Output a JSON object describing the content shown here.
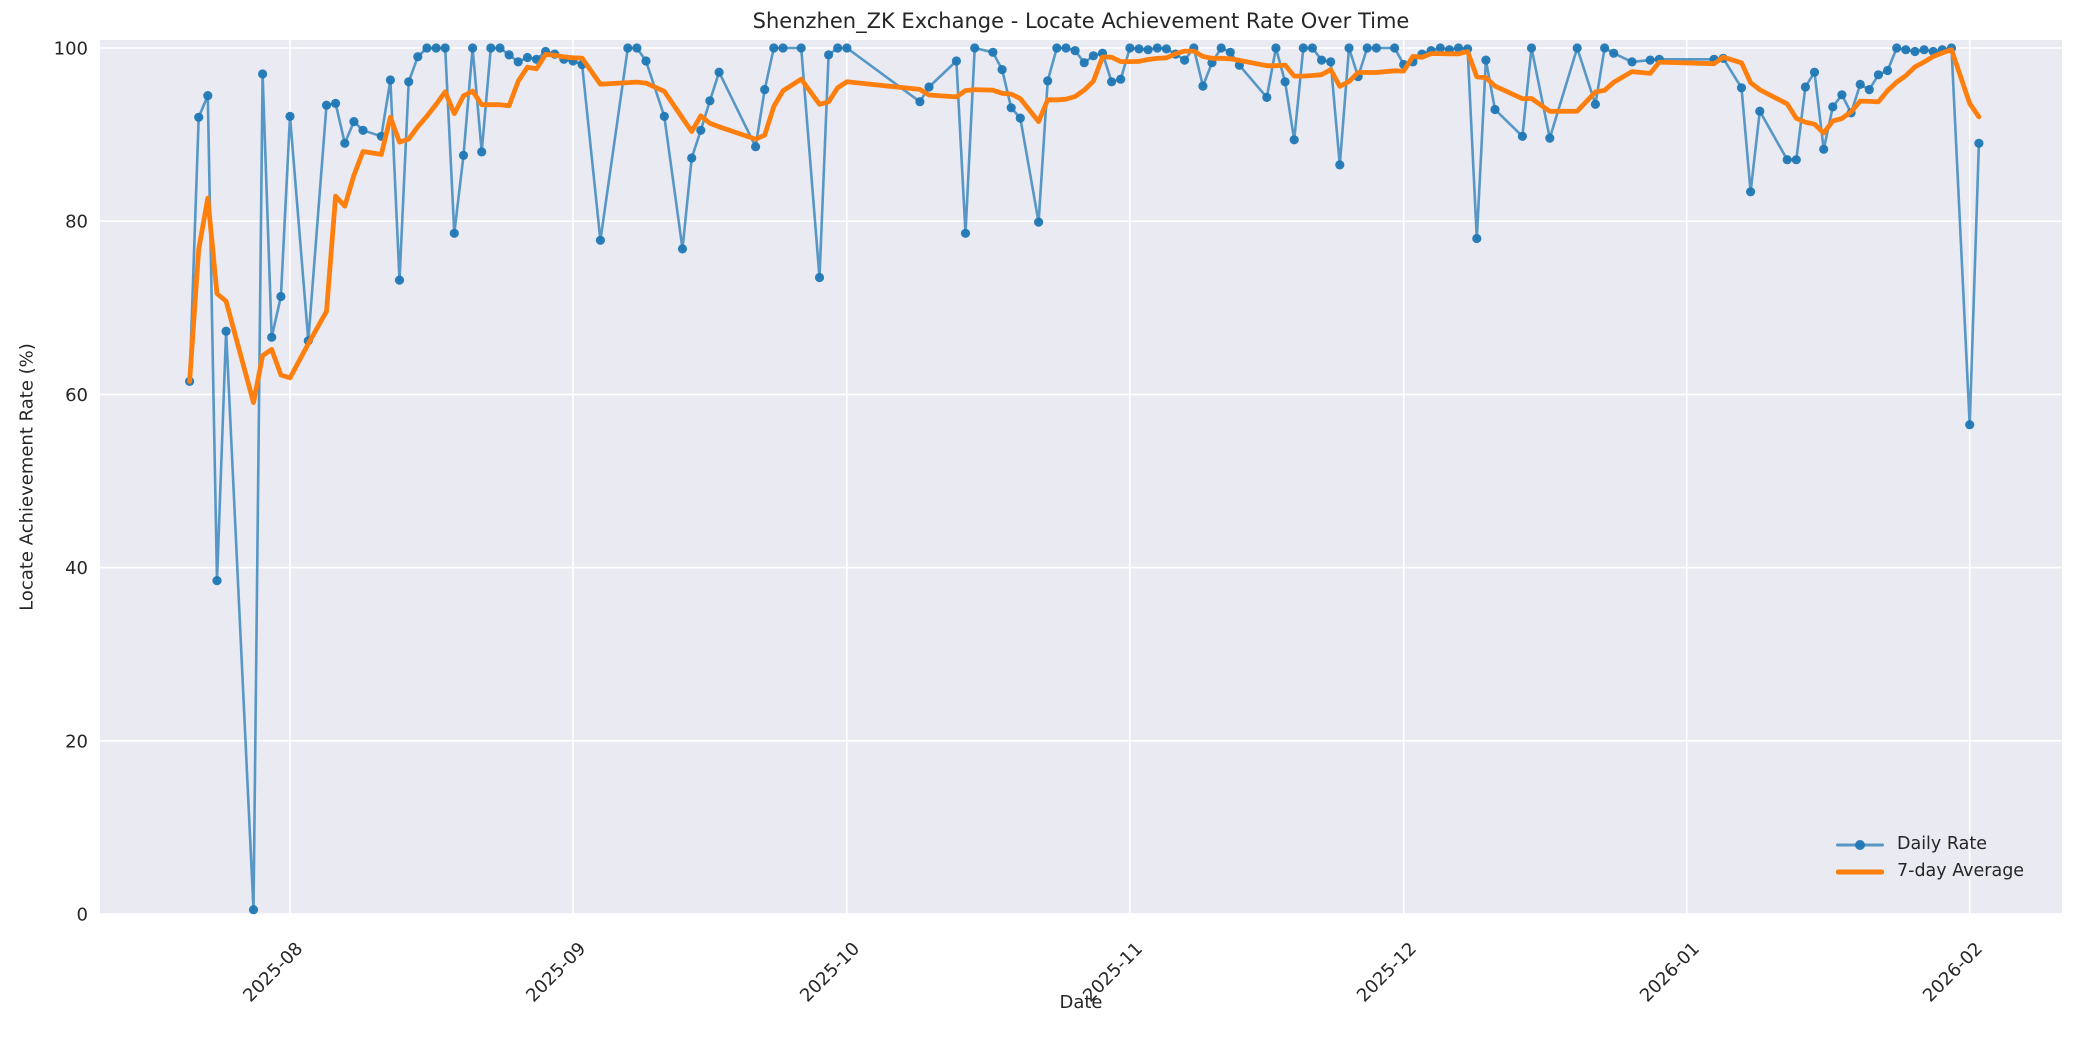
{
  "chart_data": {
    "type": "line",
    "title": "Shenzhen_ZK Exchange - Locate Achievement Rate Over Time",
    "xlabel": "Date",
    "ylabel": "Locate Achievement Rate (%)",
    "ylim": [
      0,
      101
    ],
    "grid": true,
    "legend_position": "lower right",
    "x_tick_labels": [
      "2025-08",
      "2025-09",
      "2025-10",
      "2025-11",
      "2025-12",
      "2026-01",
      "2026-02"
    ],
    "y_tick_labels": [
      0,
      20,
      40,
      60,
      80,
      100
    ],
    "colors": {
      "axes_background": "#eaeaf2",
      "gridline": "#ffffff",
      "text": "#262626",
      "daily_rate_line": "rgba(31,119,180,0.72)",
      "daily_rate_marker": "rgba(31,119,180,0.95)",
      "seven_day_average": "#ff7f0e"
    },
    "series": [
      {
        "name": "Daily Rate",
        "style": "line_with_markers",
        "points": [
          [
            "2025-07-21",
            61.5
          ],
          [
            "2025-07-22",
            92.0
          ],
          [
            "2025-07-23",
            94.5
          ],
          [
            "2025-07-24",
            38.5
          ],
          [
            "2025-07-25",
            67.3
          ],
          [
            "2025-07-28",
            0.5
          ],
          [
            "2025-07-29",
            97.0
          ],
          [
            "2025-07-30",
            66.6
          ],
          [
            "2025-07-31",
            71.3
          ],
          [
            "2025-08-01",
            92.1
          ],
          [
            "2025-08-03",
            66.2
          ],
          [
            "2025-08-05",
            93.4
          ],
          [
            "2025-08-06",
            93.6
          ],
          [
            "2025-08-07",
            89.0
          ],
          [
            "2025-08-08",
            91.5
          ],
          [
            "2025-08-09",
            90.5
          ],
          [
            "2025-08-11",
            89.8
          ],
          [
            "2025-08-12",
            96.3
          ],
          [
            "2025-08-13",
            73.2
          ],
          [
            "2025-08-14",
            96.1
          ],
          [
            "2025-08-15",
            99.0
          ],
          [
            "2025-08-16",
            100
          ],
          [
            "2025-08-17",
            100
          ],
          [
            "2025-08-18",
            100
          ],
          [
            "2025-08-19",
            78.6
          ],
          [
            "2025-08-20",
            87.6
          ],
          [
            "2025-08-21",
            100
          ],
          [
            "2025-08-22",
            88.0
          ],
          [
            "2025-08-23",
            100
          ],
          [
            "2025-08-24",
            100
          ],
          [
            "2025-08-25",
            99.2
          ],
          [
            "2025-08-26",
            98.4
          ],
          [
            "2025-08-27",
            98.9
          ],
          [
            "2025-08-28",
            98.7
          ],
          [
            "2025-08-29",
            99.6
          ],
          [
            "2025-08-30",
            99.3
          ],
          [
            "2025-08-31",
            98.7
          ],
          [
            "2025-09-01",
            98.5
          ],
          [
            "2025-09-02",
            98.1
          ],
          [
            "2025-09-04",
            77.8
          ],
          [
            "2025-09-07",
            100
          ],
          [
            "2025-09-08",
            100
          ],
          [
            "2025-09-09",
            98.5
          ],
          [
            "2025-09-11",
            92.1
          ],
          [
            "2025-09-13",
            76.8
          ],
          [
            "2025-09-14",
            87.3
          ],
          [
            "2025-09-15",
            90.5
          ],
          [
            "2025-09-16",
            93.9
          ],
          [
            "2025-09-17",
            97.2
          ],
          [
            "2025-09-21",
            88.6
          ],
          [
            "2025-09-22",
            95.2
          ],
          [
            "2025-09-23",
            100
          ],
          [
            "2025-09-24",
            100
          ],
          [
            "2025-09-26",
            100
          ],
          [
            "2025-09-28",
            73.5
          ],
          [
            "2025-09-29",
            99.2
          ],
          [
            "2025-09-30",
            100
          ],
          [
            "2025-10-01",
            100
          ],
          [
            "2025-10-09",
            93.8
          ],
          [
            "2025-10-10",
            95.5
          ],
          [
            "2025-10-13",
            98.5
          ],
          [
            "2025-10-14",
            78.6
          ],
          [
            "2025-10-15",
            100
          ],
          [
            "2025-10-17",
            99.5
          ],
          [
            "2025-10-18",
            97.5
          ],
          [
            "2025-10-19",
            93.1
          ],
          [
            "2025-10-20",
            91.9
          ],
          [
            "2025-10-22",
            79.9
          ],
          [
            "2025-10-23",
            96.2
          ],
          [
            "2025-10-24",
            100
          ],
          [
            "2025-10-25",
            100
          ],
          [
            "2025-10-26",
            99.7
          ],
          [
            "2025-10-27",
            98.3
          ],
          [
            "2025-10-28",
            99.1
          ],
          [
            "2025-10-29",
            99.4
          ],
          [
            "2025-10-30",
            96.1
          ],
          [
            "2025-10-31",
            96.4
          ],
          [
            "2025-11-01",
            100
          ],
          [
            "2025-11-02",
            99.9
          ],
          [
            "2025-11-03",
            99.8
          ],
          [
            "2025-11-04",
            100
          ],
          [
            "2025-11-05",
            99.9
          ],
          [
            "2025-11-06",
            99.3
          ],
          [
            "2025-11-07",
            98.6
          ],
          [
            "2025-11-08",
            100
          ],
          [
            "2025-11-09",
            95.6
          ],
          [
            "2025-11-10",
            98.3
          ],
          [
            "2025-11-11",
            100
          ],
          [
            "2025-11-12",
            99.5
          ],
          [
            "2025-11-13",
            98.0
          ],
          [
            "2025-11-16",
            94.3
          ],
          [
            "2025-11-17",
            100
          ],
          [
            "2025-11-18",
            96.1
          ],
          [
            "2025-11-19",
            89.4
          ],
          [
            "2025-11-20",
            100
          ],
          [
            "2025-11-21",
            100
          ],
          [
            "2025-11-22",
            98.6
          ],
          [
            "2025-11-23",
            98.4
          ],
          [
            "2025-11-24",
            86.5
          ],
          [
            "2025-11-25",
            100
          ],
          [
            "2025-11-26",
            96.7
          ],
          [
            "2025-11-27",
            100
          ],
          [
            "2025-11-28",
            100
          ],
          [
            "2025-11-30",
            100
          ],
          [
            "2025-12-01",
            98.1
          ],
          [
            "2025-12-02",
            98.4
          ],
          [
            "2025-12-03",
            99.3
          ],
          [
            "2025-12-04",
            99.7
          ],
          [
            "2025-12-05",
            100
          ],
          [
            "2025-12-06",
            99.8
          ],
          [
            "2025-12-07",
            100
          ],
          [
            "2025-12-08",
            99.9
          ],
          [
            "2025-12-09",
            78.0
          ],
          [
            "2025-12-10",
            98.6
          ],
          [
            "2025-12-11",
            92.9
          ],
          [
            "2025-12-14",
            89.8
          ],
          [
            "2025-12-15",
            100
          ],
          [
            "2025-12-17",
            89.6
          ],
          [
            "2025-12-20",
            100
          ],
          [
            "2025-12-22",
            93.5
          ],
          [
            "2025-12-23",
            100
          ],
          [
            "2025-12-24",
            99.4
          ],
          [
            "2025-12-26",
            98.4
          ],
          [
            "2025-12-28",
            98.6
          ],
          [
            "2025-12-29",
            98.7
          ],
          [
            "2026-01-04",
            98.7
          ],
          [
            "2026-01-05",
            98.8
          ],
          [
            "2026-01-07",
            95.4
          ],
          [
            "2026-01-08",
            83.4
          ],
          [
            "2026-01-09",
            92.7
          ],
          [
            "2026-01-12",
            87.1
          ],
          [
            "2026-01-13",
            87.1
          ],
          [
            "2026-01-14",
            95.5
          ],
          [
            "2026-01-15",
            97.2
          ],
          [
            "2026-01-16",
            88.3
          ],
          [
            "2026-01-17",
            93.2
          ],
          [
            "2026-01-18",
            94.6
          ],
          [
            "2026-01-19",
            92.5
          ],
          [
            "2026-01-20",
            95.8
          ],
          [
            "2026-01-21",
            95.2
          ],
          [
            "2026-01-22",
            96.9
          ],
          [
            "2026-01-23",
            97.4
          ],
          [
            "2026-01-24",
            100
          ],
          [
            "2026-01-25",
            99.8
          ],
          [
            "2026-01-26",
            99.6
          ],
          [
            "2026-01-27",
            99.8
          ],
          [
            "2026-01-28",
            99.6
          ],
          [
            "2026-01-29",
            99.8
          ],
          [
            "2026-01-30",
            100
          ],
          [
            "2026-02-01",
            56.5
          ],
          [
            "2026-02-02",
            89.0
          ]
        ]
      },
      {
        "name": "7-day Average",
        "style": "line",
        "derived": "rolling_mean_window_7_min_periods_1_of_Daily_Rate"
      }
    ]
  }
}
